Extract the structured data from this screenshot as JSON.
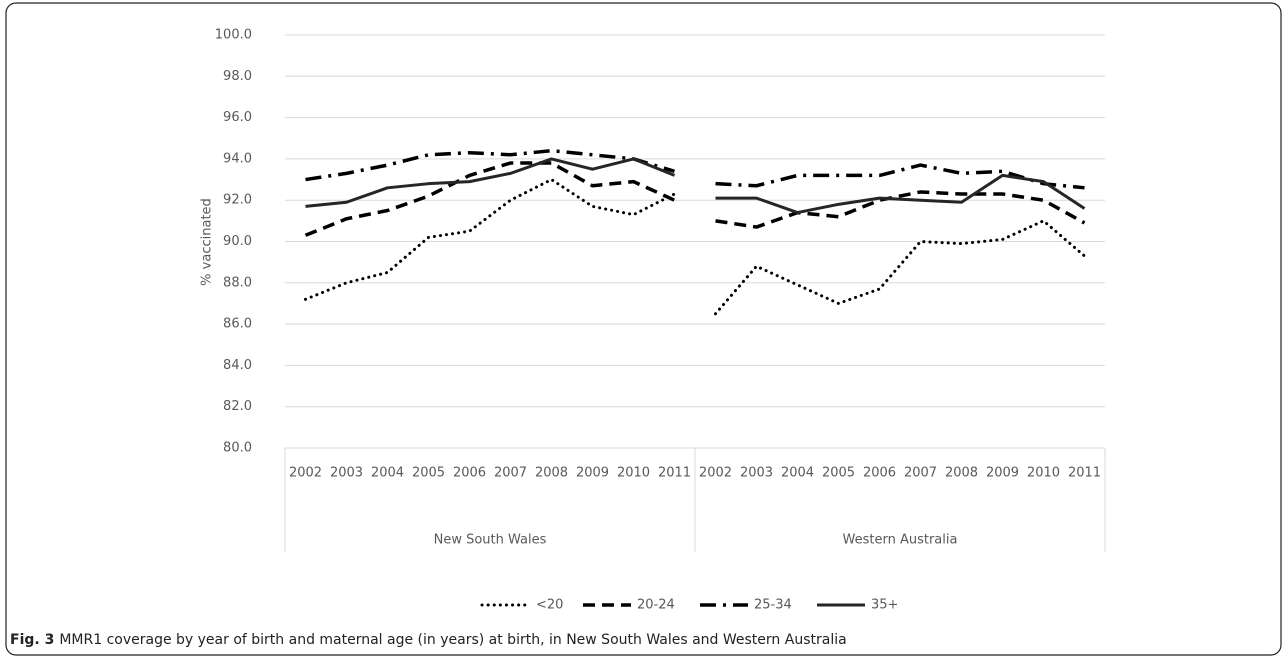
{
  "chart_data": {
    "type": "line",
    "y_label": "% vaccinated",
    "caption_label": "Fig. 3",
    "caption": "MMR1 coverage by year of birth and maternal age (in years) at birth, in New South Wales and Western Australia",
    "groups": [
      {
        "label": "New South Wales",
        "categories": [
          "2002",
          "2003",
          "2004",
          "2005",
          "2006",
          "2007",
          "2008",
          "2009",
          "2010",
          "2011"
        ]
      },
      {
        "label": "Western Australia",
        "categories": [
          "2002",
          "2003",
          "2004",
          "2005",
          "2006",
          "2007",
          "2008",
          "2009",
          "2010",
          "2011"
        ]
      }
    ],
    "series": [
      {
        "name": "<20",
        "color": "#000000",
        "dash": "dotted",
        "values": [
          [
            87.2,
            88.0,
            88.5,
            90.2,
            90.5,
            92.0,
            93.0,
            91.7,
            91.3,
            92.3
          ],
          [
            86.5,
            88.8,
            87.9,
            87.0,
            87.7,
            90.0,
            89.9,
            90.1,
            91.0,
            89.3
          ]
        ]
      },
      {
        "name": "20-24",
        "color": "#000000",
        "dash": "dashed",
        "values": [
          [
            90.3,
            91.1,
            91.5,
            92.2,
            93.2,
            93.8,
            93.8,
            92.7,
            92.9,
            92.0
          ],
          [
            91.0,
            90.7,
            91.4,
            91.2,
            92.0,
            92.4,
            92.3,
            92.3,
            92.0,
            90.9
          ]
        ]
      },
      {
        "name": "25-34",
        "color": "#000000",
        "dash": "dashdot",
        "values": [
          [
            93.0,
            93.3,
            93.7,
            94.2,
            94.3,
            94.2,
            94.4,
            94.2,
            94.0,
            93.4
          ],
          [
            92.8,
            92.7,
            93.2,
            93.2,
            93.2,
            93.7,
            93.3,
            93.4,
            92.8,
            92.6
          ]
        ]
      },
      {
        "name": "35+",
        "color": "#262626",
        "dash": "solid",
        "values": [
          [
            91.7,
            91.9,
            92.6,
            92.8,
            92.9,
            93.3,
            94.0,
            93.5,
            94.0,
            93.2
          ],
          [
            92.1,
            92.1,
            91.4,
            91.8,
            92.1,
            92.0,
            91.9,
            93.2,
            92.9,
            91.6
          ]
        ]
      }
    ],
    "ylim": [
      80,
      100
    ],
    "yticks": [
      {
        "value": 80,
        "label": "80.0"
      },
      {
        "value": 82,
        "label": "82.0"
      },
      {
        "value": 84,
        "label": "84.0"
      },
      {
        "value": 86,
        "label": "86.0"
      },
      {
        "value": 88,
        "label": "88.0"
      },
      {
        "value": 90,
        "label": "90.0"
      },
      {
        "value": 92,
        "label": "92.0"
      },
      {
        "value": 94,
        "label": "94.0"
      },
      {
        "value": 96,
        "label": "96.0"
      },
      {
        "value": 98,
        "label": "98.0"
      },
      {
        "value": 100,
        "label": "100.0"
      }
    ],
    "grid": true,
    "legend": "bottom"
  }
}
